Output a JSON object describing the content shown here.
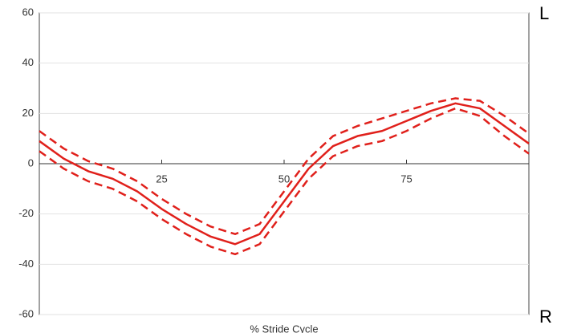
{
  "chart_data": {
    "type": "line",
    "x_label": "% Stride Cycle",
    "annotations": [
      "L",
      "R"
    ],
    "x": [
      0,
      5,
      10,
      15,
      20,
      25,
      30,
      35,
      40,
      45,
      50,
      55,
      60,
      65,
      70,
      75,
      80,
      85,
      90,
      95,
      100
    ],
    "series": [
      {
        "color": "#e0201b",
        "style": "solid",
        "values": [
          9,
          2,
          -3,
          -6,
          -11,
          -18,
          -24,
          -29,
          -32,
          -28,
          -15,
          -2,
          7,
          11,
          13,
          17,
          21,
          24,
          22,
          15,
          8
        ]
      },
      {
        "color": "#e0201b",
        "style": "dashed",
        "values": [
          13,
          6,
          1,
          -2,
          -7,
          -14,
          -20,
          -25,
          -28,
          -24,
          -11,
          2,
          11,
          15,
          18,
          21,
          24,
          26,
          25,
          19,
          12
        ]
      },
      {
        "color": "#e0201b",
        "style": "dashed",
        "values": [
          5,
          -2,
          -7,
          -10,
          -15,
          -22,
          -28,
          -33,
          -36,
          -32,
          -19,
          -6,
          3,
          7,
          9,
          13,
          18,
          22,
          19,
          11,
          4
        ]
      }
    ],
    "xlim": [
      0,
      100
    ],
    "xticks": [
      25,
      50,
      75
    ],
    "ylim": [
      -60,
      60
    ],
    "yticks": [
      -60,
      -40,
      -20,
      0,
      20,
      40,
      60
    ],
    "grid": true
  }
}
